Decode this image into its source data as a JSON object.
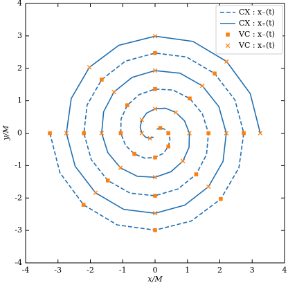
{
  "chart_data": {
    "type": "line",
    "xlabel": "x/M",
    "ylabel": "y/M",
    "xlim": [
      -4,
      4
    ],
    "ylim": [
      -4,
      4
    ],
    "xticks": [
      -4,
      -3,
      -2,
      -1,
      0,
      1,
      2,
      3,
      4
    ],
    "yticks": [
      -4,
      -3,
      -2,
      -1,
      0,
      1,
      2,
      3,
      4
    ],
    "legend": "upper right",
    "series": [
      {
        "name": "CX : x₋(t)",
        "color": "#1f6fb2",
        "linestyle": "dashed",
        "x": [
          -3.25,
          -2.94,
          -2.21,
          -1.17,
          0,
          1.12,
          2.03,
          2.59,
          2.74,
          2.47,
          1.84,
          0.97,
          0,
          -0.92,
          -1.65,
          -2.1,
          -2.2,
          -1.97,
          -1.46,
          -0.77,
          0,
          0.71,
          1.27,
          1.59,
          1.65,
          1.46,
          1.07,
          0.55,
          0,
          -0.49,
          -0.86,
          -1.05,
          -1.06,
          -0.91,
          -0.64,
          -0.32,
          0,
          0.26,
          0.41,
          0.46,
          0.41,
          0.3,
          0.16,
          0.05
        ],
        "values": [
          0,
          -1.22,
          -2.21,
          -2.83,
          -2.99,
          -2.71,
          -2.03,
          -1.07,
          0,
          1.02,
          1.84,
          2.35,
          2.47,
          2.22,
          1.65,
          0.87,
          0,
          -0.82,
          -1.46,
          -1.85,
          -1.93,
          -1.72,
          -1.27,
          -0.66,
          0,
          0.6,
          1.07,
          1.33,
          1.36,
          1.19,
          0.86,
          0.44,
          0,
          -0.38,
          -0.64,
          -0.77,
          -0.75,
          -0.62,
          -0.41,
          -0.19,
          0,
          0.12,
          0.16,
          0.12
        ]
      },
      {
        "name": "CX : x₊(t)",
        "color": "#1f6fb2",
        "linestyle": "solid",
        "x": [
          3.25,
          2.94,
          2.21,
          1.17,
          0,
          -1.12,
          -2.03,
          -2.59,
          -2.74,
          -2.47,
          -1.84,
          -0.97,
          0,
          0.92,
          1.65,
          2.1,
          2.2,
          1.97,
          1.46,
          0.77,
          0,
          -0.71,
          -1.27,
          -1.59,
          -1.65,
          -1.46,
          -1.07,
          -0.55,
          0,
          0.49,
          0.86,
          1.05,
          1.06,
          0.91,
          0.64,
          0.32,
          0,
          -0.26,
          -0.41,
          -0.46,
          -0.41,
          -0.3,
          -0.16,
          -0.05
        ],
        "values": [
          0,
          1.22,
          2.21,
          2.83,
          2.99,
          2.71,
          2.03,
          1.07,
          0,
          -1.02,
          -1.84,
          -2.35,
          -2.47,
          -2.22,
          -1.65,
          -0.87,
          0,
          0.82,
          1.46,
          1.85,
          1.93,
          1.72,
          1.27,
          0.66,
          0,
          -0.6,
          -1.07,
          -1.33,
          -1.36,
          -1.19,
          -0.86,
          -0.44,
          0,
          0.38,
          0.64,
          0.77,
          0.75,
          0.62,
          0.41,
          0.19,
          0,
          -0.12,
          -0.16,
          -0.12
        ]
      },
      {
        "name": "VC : x₋(t)",
        "color": "#ff7f0e",
        "marker": "square",
        "x": [
          -3.25,
          -2.21,
          0,
          2.03,
          2.74,
          1.84,
          0,
          -1.65,
          -2.2,
          -1.46,
          0,
          1.27,
          1.65,
          1.07,
          0,
          -0.86,
          -1.06,
          -0.64,
          0,
          0.41,
          0.41,
          0.16
        ],
        "values": [
          0,
          -2.21,
          -2.99,
          -2.03,
          0,
          1.84,
          2.47,
          1.65,
          0,
          -1.46,
          -1.93,
          -1.27,
          0,
          1.07,
          1.36,
          0.86,
          0,
          -0.64,
          -0.75,
          -0.41,
          0,
          0.16
        ]
      },
      {
        "name": "VC : x₊(t)",
        "color": "#ff7f0e",
        "marker": "x",
        "x": [
          3.25,
          2.21,
          0,
          -2.03,
          -2.74,
          -1.84,
          0,
          1.65,
          2.2,
          1.46,
          0,
          -1.27,
          -1.65,
          -1.07,
          0,
          0.86,
          1.06,
          0.64,
          0,
          -0.41,
          -0.41,
          -0.16
        ],
        "values": [
          0,
          2.21,
          2.99,
          2.03,
          0,
          -1.84,
          -2.47,
          -1.65,
          0,
          1.46,
          1.93,
          1.27,
          0,
          -1.07,
          -1.36,
          -0.86,
          0,
          0.64,
          0.75,
          0.41,
          0,
          -0.16
        ]
      }
    ]
  }
}
